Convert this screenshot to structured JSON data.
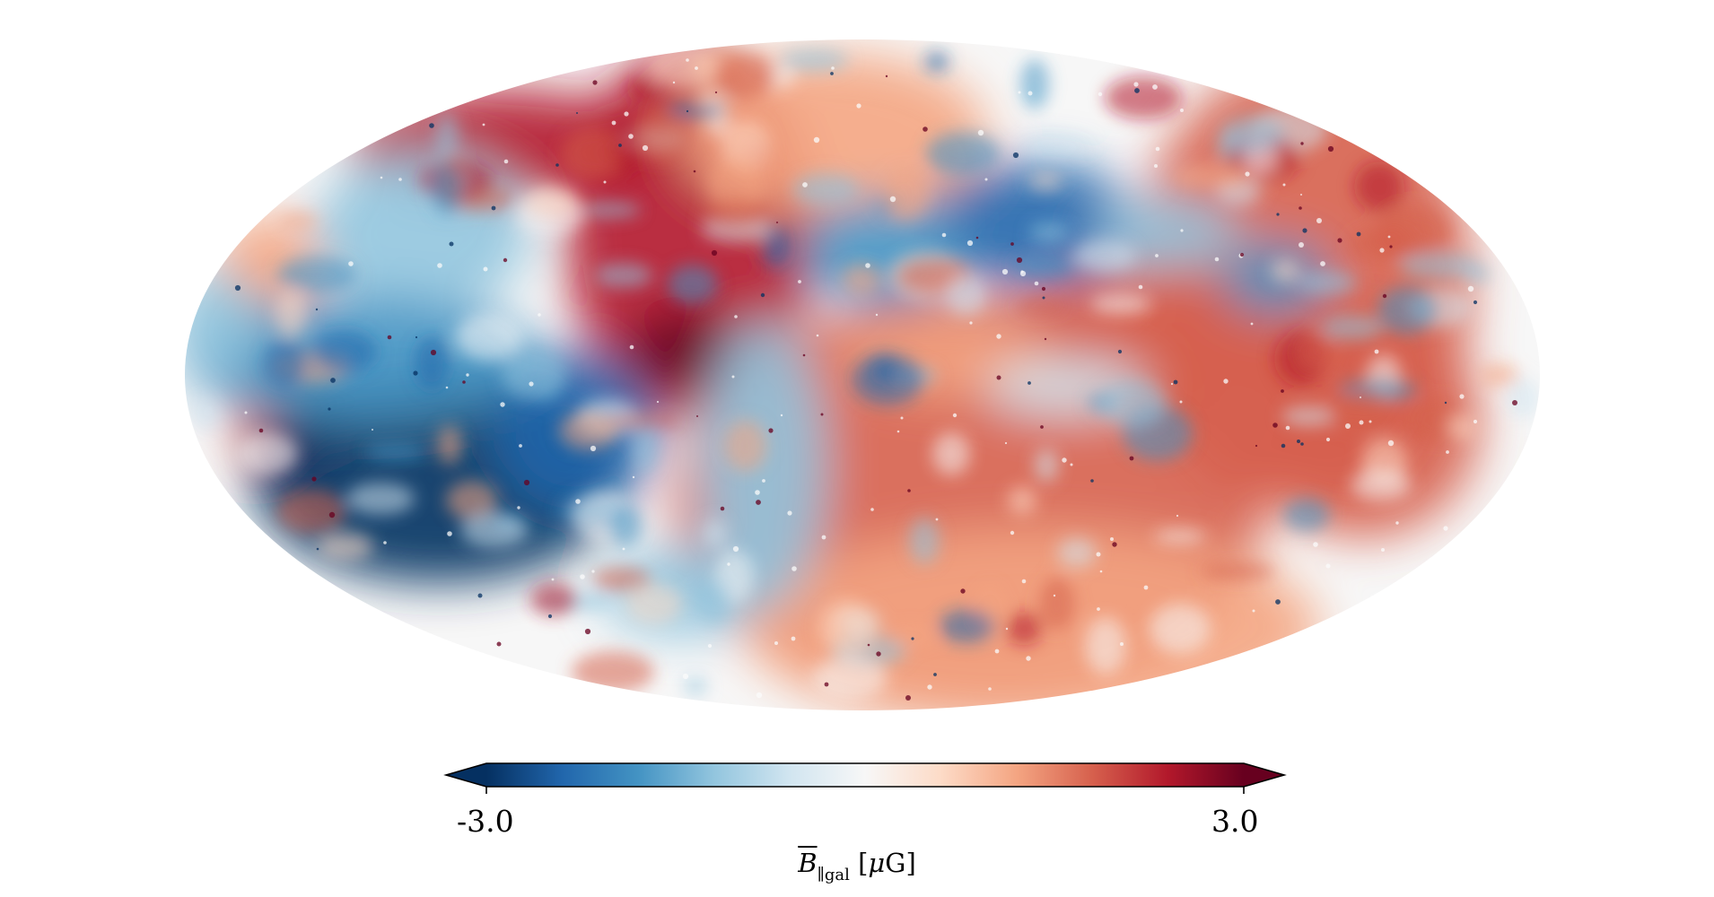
{
  "map": {
    "projection": "mollweide",
    "colormap": "RdBu_r",
    "colormap_stops": [
      "#053061",
      "#2166ac",
      "#4393c3",
      "#92c5de",
      "#d1e5f0",
      "#f7f7f7",
      "#fddbc7",
      "#f4a582",
      "#d6604d",
      "#b2182b",
      "#67001f"
    ],
    "background_color": "#ffffff"
  },
  "colorbar": {
    "min_label": "-3.0",
    "max_label": "3.0",
    "vmin": -3.0,
    "vmax": 3.0,
    "extend": "both",
    "quantity_symbol": "B",
    "quantity_subscript": "∥gal",
    "unit_open": "[",
    "unit_mu": "μ",
    "unit_rest": "G]"
  }
}
